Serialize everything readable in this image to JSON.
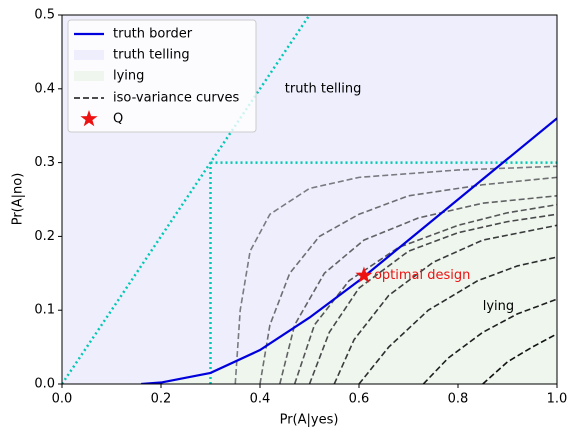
{
  "chart_data": {
    "type": "line",
    "xlabel": "Pr(A|yes)",
    "ylabel": "Pr(A|no)",
    "xlim": [
      0,
      1
    ],
    "ylim": [
      0,
      0.5
    ],
    "xticks": [
      {
        "value": 0,
        "label": "0.0"
      },
      {
        "value": 0.2,
        "label": "0.2"
      },
      {
        "value": 0.4,
        "label": "0.4"
      },
      {
        "value": 0.6,
        "label": "0.6"
      },
      {
        "value": 0.8,
        "label": "0.8"
      },
      {
        "value": 1,
        "label": "1.0"
      }
    ],
    "yticks": [
      {
        "value": 0,
        "label": "0.0"
      },
      {
        "value": 0.1,
        "label": "0.1"
      },
      {
        "value": 0.2,
        "label": "0.2"
      },
      {
        "value": 0.3,
        "label": "0.3"
      },
      {
        "value": 0.4,
        "label": "0.4"
      },
      {
        "value": 0.5,
        "label": "0.5"
      }
    ],
    "border": {
      "name": "truth border",
      "color": "#0000dd",
      "x": [
        0.16,
        0.2,
        0.3,
        0.4,
        0.5,
        0.6,
        0.7,
        0.8,
        0.9,
        1.0
      ],
      "y": [
        0,
        0.002,
        0.015,
        0.046,
        0.09,
        0.14,
        0.195,
        0.25,
        0.305,
        0.36
      ]
    },
    "regions": [
      {
        "name": "truth telling",
        "color": "#eeeefc"
      },
      {
        "name": "lying",
        "color": "#eef6ee"
      }
    ],
    "iso": {
      "name": "iso-variance curves",
      "color": "#111111",
      "curves": [
        {
          "color": "#7a7a80",
          "x": [
            0.35,
            0.36,
            0.38,
            0.42,
            0.5,
            0.6,
            0.8,
            1.0
          ],
          "y": [
            0,
            0.1,
            0.18,
            0.23,
            0.265,
            0.28,
            0.29,
            0.295
          ]
        },
        {
          "color": "#6e6e72",
          "x": [
            0.4,
            0.42,
            0.46,
            0.52,
            0.6,
            0.7,
            0.85,
            1.0
          ],
          "y": [
            0,
            0.08,
            0.15,
            0.2,
            0.23,
            0.255,
            0.27,
            0.28
          ]
        },
        {
          "color": "#626265",
          "x": [
            0.44,
            0.47,
            0.53,
            0.61,
            0.72,
            0.85,
            1.0
          ],
          "y": [
            0,
            0.08,
            0.15,
            0.195,
            0.225,
            0.245,
            0.255
          ]
        },
        {
          "color": "#555558",
          "x": [
            0.47,
            0.51,
            0.58,
            0.68,
            0.8,
            0.9,
            1.0
          ],
          "y": [
            0,
            0.08,
            0.14,
            0.185,
            0.215,
            0.232,
            0.243
          ]
        },
        {
          "color": "#48484a",
          "x": [
            0.5,
            0.54,
            0.6,
            0.7,
            0.8,
            0.9,
            1.0
          ],
          "y": [
            0,
            0.07,
            0.13,
            0.18,
            0.205,
            0.22,
            0.23
          ]
        },
        {
          "color": "#3a3a3c",
          "x": [
            0.55,
            0.59,
            0.66,
            0.75,
            0.85,
            1.0
          ],
          "y": [
            0,
            0.06,
            0.12,
            0.165,
            0.195,
            0.215
          ]
        },
        {
          "color": "#2c2c2e",
          "x": [
            0.6,
            0.66,
            0.74,
            0.84,
            0.92,
            1.0
          ],
          "y": [
            0,
            0.05,
            0.1,
            0.14,
            0.16,
            0.172
          ]
        },
        {
          "color": "#1e1e1f",
          "x": [
            0.73,
            0.78,
            0.85,
            0.92,
            1.0
          ],
          "y": [
            0,
            0.035,
            0.07,
            0.095,
            0.115
          ]
        },
        {
          "color": "#111111",
          "x": [
            0.85,
            0.9,
            0.95,
            1.0
          ],
          "y": [
            0,
            0.03,
            0.05,
            0.068
          ]
        }
      ]
    },
    "reference_color": "#00c8b4",
    "reference_lines": [
      {
        "x": [
          0,
          0.5
        ],
        "y": [
          0,
          0.5
        ]
      },
      {
        "x": [
          0.3,
          0.3
        ],
        "y": [
          0,
          0.3
        ]
      },
      {
        "x": [
          0.3,
          1.0
        ],
        "y": [
          0.3,
          0.3
        ]
      }
    ],
    "point": {
      "name": "Q",
      "color": "#ee1111",
      "x": 0.61,
      "y": 0.147,
      "label": "optimal design"
    },
    "annotations": [
      {
        "text": "truth telling",
        "x": 0.45,
        "y": 0.4
      },
      {
        "text": "lying",
        "x": 0.85,
        "y": 0.105
      }
    ]
  }
}
